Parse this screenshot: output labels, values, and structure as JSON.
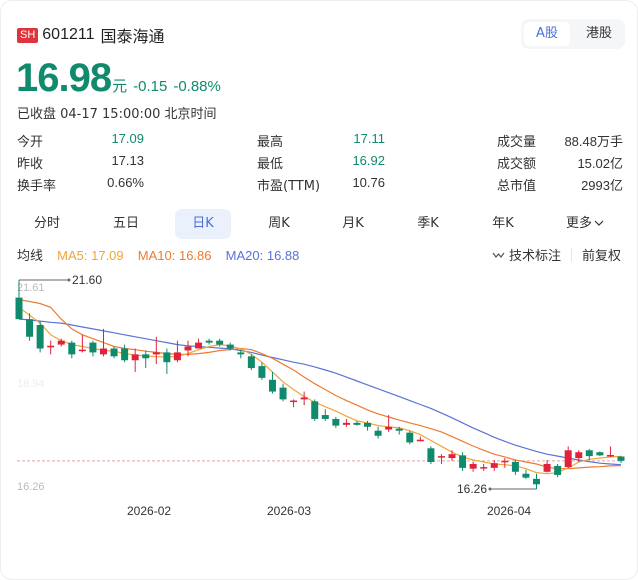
{
  "header": {
    "market_badge": "SH",
    "code": "601211",
    "name": "国泰海通",
    "market_tabs": [
      {
        "label": "A股",
        "active": true
      },
      {
        "label": "港股",
        "active": false
      }
    ]
  },
  "quote": {
    "price": "16.98",
    "unit": "元",
    "change": "-0.15",
    "change_pct": "-0.88%",
    "status": "已收盘 04-17 15:00:00 北京时间"
  },
  "stats": [
    [
      {
        "label": "今开",
        "value": "17.09",
        "color": "green"
      },
      {
        "label": "最高",
        "value": "17.11",
        "color": "green"
      },
      {
        "label": "成交量",
        "value": "88.48万手"
      }
    ],
    [
      {
        "label": "昨收",
        "value": "17.13"
      },
      {
        "label": "最低",
        "value": "16.92",
        "color": "green"
      },
      {
        "label": "成交额",
        "value": "15.02亿"
      }
    ],
    [
      {
        "label": "换手率",
        "value": "0.66%"
      },
      {
        "label": "市盈(TTM)",
        "value": "10.76"
      },
      {
        "label": "总市值",
        "value": "2993亿"
      }
    ]
  ],
  "period_tabs": [
    {
      "label": "分时",
      "active": false
    },
    {
      "label": "五日",
      "active": false
    },
    {
      "label": "日K",
      "active": true
    },
    {
      "label": "周K",
      "active": false
    },
    {
      "label": "月K",
      "active": false
    },
    {
      "label": "季K",
      "active": false
    },
    {
      "label": "年K",
      "active": false
    },
    {
      "label": "更多",
      "active": false,
      "dropdown": true
    }
  ],
  "ma_legend": {
    "title": "均线",
    "ma5": "MA5: 17.09",
    "ma10": "MA10: 16.86",
    "ma20": "MA20: 16.88"
  },
  "tools": {
    "indicator_icon": "wave-icon",
    "indicator": "技术标注",
    "adjust": "前复权"
  },
  "colors": {
    "up": "#e0233b",
    "down": "#0f8a6c",
    "ma5": "#f0a53a",
    "ma10": "#ee7b30",
    "ma20": "#5a74d6",
    "accent": "#4a6fd8"
  },
  "chart_data": {
    "type": "candlestick",
    "title": "601211 国泰海通 日K",
    "y_axis_labels": [
      "21.61",
      "18.94",
      "16.26"
    ],
    "ylim": [
      16.26,
      21.61
    ],
    "x_tick_labels": [
      "2026-02",
      "2026-03",
      "2026-04"
    ],
    "max_marker": "21.60",
    "min_marker": "16.26",
    "current_price_line": 16.98,
    "grid": false,
    "candles": [
      {
        "o": 21.15,
        "h": 21.6,
        "l": 20.78,
        "c": 20.6
      },
      {
        "o": 20.6,
        "h": 20.75,
        "l": 20.05,
        "c": 20.15
      },
      {
        "o": 20.45,
        "h": 20.55,
        "l": 19.75,
        "c": 19.85
      },
      {
        "o": 19.88,
        "h": 20.05,
        "l": 19.7,
        "c": 19.92
      },
      {
        "o": 19.95,
        "h": 20.1,
        "l": 19.9,
        "c": 20.05
      },
      {
        "o": 20.0,
        "h": 20.05,
        "l": 19.6,
        "c": 19.7
      },
      {
        "o": 19.8,
        "h": 20.2,
        "l": 19.75,
        "c": 19.82
      },
      {
        "o": 20.0,
        "h": 20.05,
        "l": 19.65,
        "c": 19.75
      },
      {
        "o": 19.7,
        "h": 20.35,
        "l": 19.65,
        "c": 19.85
      },
      {
        "o": 19.85,
        "h": 19.9,
        "l": 19.6,
        "c": 19.65
      },
      {
        "o": 19.85,
        "h": 19.95,
        "l": 19.5,
        "c": 19.55
      },
      {
        "o": 19.55,
        "h": 19.85,
        "l": 19.25,
        "c": 19.7
      },
      {
        "o": 19.7,
        "h": 19.8,
        "l": 19.35,
        "c": 19.6
      },
      {
        "o": 19.7,
        "h": 20.15,
        "l": 19.45,
        "c": 19.75
      },
      {
        "o": 19.75,
        "h": 19.85,
        "l": 19.2,
        "c": 19.5
      },
      {
        "o": 19.55,
        "h": 20.05,
        "l": 19.5,
        "c": 19.75
      },
      {
        "o": 19.8,
        "h": 20.05,
        "l": 19.65,
        "c": 19.9
      },
      {
        "o": 19.85,
        "h": 20.1,
        "l": 19.85,
        "c": 20.0
      },
      {
        "o": 20.05,
        "h": 20.1,
        "l": 19.95,
        "c": 20.0
      },
      {
        "o": 20.05,
        "h": 20.1,
        "l": 19.9,
        "c": 19.95
      },
      {
        "o": 19.95,
        "h": 20.0,
        "l": 19.8,
        "c": 19.85
      },
      {
        "o": 19.75,
        "h": 19.82,
        "l": 19.6,
        "c": 19.7
      },
      {
        "o": 19.65,
        "h": 19.7,
        "l": 19.3,
        "c": 19.35
      },
      {
        "o": 19.4,
        "h": 19.5,
        "l": 19.05,
        "c": 19.1
      },
      {
        "o": 19.05,
        "h": 19.25,
        "l": 18.7,
        "c": 18.75
      },
      {
        "o": 18.85,
        "h": 18.95,
        "l": 18.5,
        "c": 18.55
      },
      {
        "o": 18.5,
        "h": 18.55,
        "l": 18.35,
        "c": 18.52
      },
      {
        "o": 18.55,
        "h": 18.75,
        "l": 18.4,
        "c": 18.6
      },
      {
        "o": 18.5,
        "h": 18.55,
        "l": 18.0,
        "c": 18.05
      },
      {
        "o": 18.15,
        "h": 18.3,
        "l": 18.0,
        "c": 18.05
      },
      {
        "o": 18.05,
        "h": 18.1,
        "l": 17.82,
        "c": 17.88
      },
      {
        "o": 17.9,
        "h": 18.05,
        "l": 17.85,
        "c": 17.95
      },
      {
        "o": 17.95,
        "h": 18.0,
        "l": 17.88,
        "c": 17.9
      },
      {
        "o": 17.95,
        "h": 18.0,
        "l": 17.75,
        "c": 17.85
      },
      {
        "o": 17.75,
        "h": 17.85,
        "l": 17.55,
        "c": 17.62
      },
      {
        "o": 17.78,
        "h": 18.15,
        "l": 17.72,
        "c": 17.85
      },
      {
        "o": 17.8,
        "h": 17.85,
        "l": 17.65,
        "c": 17.75
      },
      {
        "o": 17.7,
        "h": 17.75,
        "l": 17.4,
        "c": 17.45
      },
      {
        "o": 17.48,
        "h": 17.6,
        "l": 17.48,
        "c": 17.52
      },
      {
        "o": 17.3,
        "h": 17.35,
        "l": 16.9,
        "c": 16.95
      },
      {
        "o": 17.1,
        "h": 17.15,
        "l": 16.9,
        "c": 17.1
      },
      {
        "o": 17.05,
        "h": 17.25,
        "l": 16.98,
        "c": 17.15
      },
      {
        "o": 17.12,
        "h": 17.2,
        "l": 16.72,
        "c": 16.8
      },
      {
        "o": 16.78,
        "h": 16.95,
        "l": 16.7,
        "c": 16.9
      },
      {
        "o": 16.82,
        "h": 16.9,
        "l": 16.72,
        "c": 16.82
      },
      {
        "o": 16.8,
        "h": 17.0,
        "l": 16.72,
        "c": 16.92
      },
      {
        "o": 16.95,
        "h": 17.05,
        "l": 16.8,
        "c": 16.98
      },
      {
        "o": 16.95,
        "h": 17.0,
        "l": 16.62,
        "c": 16.7
      },
      {
        "o": 16.65,
        "h": 16.75,
        "l": 16.52,
        "c": 16.55
      },
      {
        "o": 16.52,
        "h": 16.65,
        "l": 16.26,
        "c": 16.38
      },
      {
        "o": 16.7,
        "h": 17.0,
        "l": 16.68,
        "c": 16.9
      },
      {
        "o": 16.85,
        "h": 16.9,
        "l": 16.56,
        "c": 16.62
      },
      {
        "o": 16.82,
        "h": 17.35,
        "l": 16.8,
        "c": 17.25
      },
      {
        "o": 17.05,
        "h": 17.25,
        "l": 16.95,
        "c": 17.2
      },
      {
        "o": 17.25,
        "h": 17.28,
        "l": 17.0,
        "c": 17.1
      },
      {
        "o": 17.2,
        "h": 17.22,
        "l": 17.1,
        "c": 17.12
      },
      {
        "o": 17.1,
        "h": 17.35,
        "l": 17.08,
        "c": 17.13
      },
      {
        "o": 17.09,
        "h": 17.11,
        "l": 16.92,
        "c": 16.98
      }
    ],
    "ma5": [
      20.9,
      20.7,
      20.5,
      20.2,
      20.05,
      19.95,
      19.9,
      19.85,
      19.8,
      19.78,
      19.72,
      19.68,
      19.66,
      19.64,
      19.63,
      19.65,
      19.72,
      19.82,
      19.9,
      19.95,
      19.92,
      19.84,
      19.7,
      19.5,
      19.25,
      19.0,
      18.8,
      18.62,
      18.48,
      18.36,
      18.25,
      18.12,
      18.0,
      17.95,
      17.88,
      17.85,
      17.82,
      17.75,
      17.65,
      17.5,
      17.35,
      17.2,
      17.08,
      17.0,
      16.95,
      16.9,
      16.88,
      16.85,
      16.78,
      16.68,
      16.65,
      16.68,
      16.8,
      16.95,
      17.02,
      17.05,
      17.08,
      17.09
    ],
    "ma10": [
      21.1,
      21.05,
      21.0,
      20.9,
      20.6,
      20.35,
      20.2,
      20.1,
      20.0,
      19.9,
      19.85,
      19.82,
      19.78,
      19.75,
      19.72,
      19.7,
      19.7,
      19.72,
      19.75,
      19.8,
      19.82,
      19.85,
      19.82,
      19.72,
      19.6,
      19.45,
      19.3,
      19.12,
      18.95,
      18.8,
      18.65,
      18.52,
      18.4,
      18.28,
      18.18,
      18.1,
      18.02,
      17.95,
      17.88,
      17.8,
      17.72,
      17.6,
      17.48,
      17.36,
      17.25,
      17.15,
      17.08,
      17.0,
      16.95,
      16.9,
      16.82,
      16.78,
      16.78,
      16.8,
      16.82,
      16.83,
      16.85,
      16.86
    ],
    "ma20": [
      20.6,
      20.58,
      20.55,
      20.52,
      20.5,
      20.45,
      20.4,
      20.35,
      20.3,
      20.25,
      20.2,
      20.15,
      20.1,
      20.05,
      20.0,
      19.95,
      19.92,
      19.9,
      19.88,
      19.86,
      19.84,
      19.8,
      19.75,
      19.68,
      19.62,
      19.56,
      19.5,
      19.45,
      19.38,
      19.3,
      19.22,
      19.12,
      19.02,
      18.92,
      18.82,
      18.72,
      18.62,
      18.52,
      18.42,
      18.32,
      18.2,
      18.08,
      17.95,
      17.82,
      17.7,
      17.58,
      17.48,
      17.38,
      17.3,
      17.22,
      17.15,
      17.1,
      17.05,
      17.0,
      16.96,
      16.92,
      16.9,
      16.88
    ]
  }
}
